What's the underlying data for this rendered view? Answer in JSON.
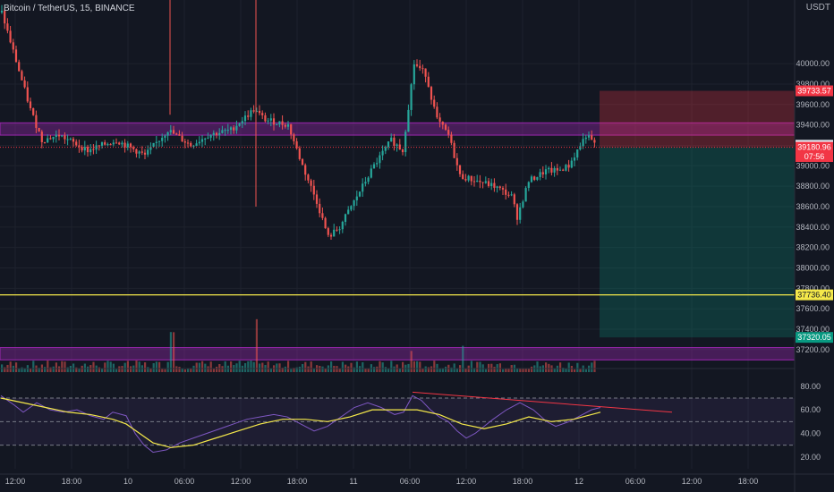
{
  "header": {
    "title": "Bitcoin / TetherUS, 15, BINANCE",
    "currency": "USDT"
  },
  "colors": {
    "background": "#131722",
    "up": "#26a69a",
    "down": "#ef5350",
    "zone": "#9c27b0",
    "yellow_line": "#f5e94a",
    "rsi_line": "#7e57c2",
    "rsi_ma": "#f5e94a",
    "trend_line": "#f23645"
  },
  "chart_data": [
    {
      "type": "candlestick",
      "title": "Bitcoin / TetherUS, 15, BINANCE",
      "ylim": [
        37050,
        40500
      ],
      "price_ticks": [
        "40000.00",
        "39800.00",
        "39600.00",
        "39400.00",
        "39200.00",
        "39000.00",
        "38800.00",
        "38600.00",
        "38400.00",
        "38200.00",
        "38000.00",
        "37800.00",
        "37600.00",
        "37400.00",
        "37200.00"
      ],
      "time_ticks": [
        "12:00",
        "18:00",
        "10",
        "06:00",
        "12:00",
        "18:00",
        "11",
        "06:00",
        "12:00",
        "18:00",
        "12",
        "06:00",
        "12:00",
        "18:00"
      ],
      "price_path": [
        [
          0,
          40500
        ],
        [
          10,
          39550
        ],
        [
          14,
          39250
        ],
        [
          20,
          39300
        ],
        [
          30,
          39150
        ],
        [
          40,
          39250
        ],
        [
          50,
          39100
        ],
        [
          58,
          39350
        ],
        [
          66,
          39200
        ],
        [
          72,
          39300
        ],
        [
          80,
          39350
        ],
        [
          88,
          39550
        ],
        [
          92,
          39450
        ],
        [
          100,
          39400
        ],
        [
          105,
          39000
        ],
        [
          110,
          38650
        ],
        [
          114,
          38300
        ],
        [
          118,
          38400
        ],
        [
          122,
          38600
        ],
        [
          130,
          39000
        ],
        [
          136,
          39250
        ],
        [
          140,
          39150
        ],
        [
          144,
          40000
        ],
        [
          148,
          39900
        ],
        [
          152,
          39450
        ],
        [
          156,
          39300
        ],
        [
          160,
          38900
        ],
        [
          166,
          38850
        ],
        [
          172,
          38800
        ],
        [
          178,
          38700
        ],
        [
          180,
          38500
        ],
        [
          184,
          38850
        ],
        [
          190,
          38950
        ],
        [
          194,
          38950
        ],
        [
          198,
          39000
        ],
        [
          204,
          39300
        ],
        [
          208,
          39180
        ]
      ],
      "zones": [
        {
          "from": 39420,
          "to": 39300
        },
        {
          "from": 37220,
          "to": 37100
        }
      ],
      "horizontal_line": 37736.4,
      "current_price_line": 39180.96,
      "position": {
        "entry": 39180.96,
        "stop": 39733.57,
        "target": 37320.05
      },
      "labels": [
        {
          "text": "39733.57",
          "price": 39733.57,
          "bg": "#f23645",
          "fg": "#ffffff"
        },
        {
          "text": "39201.07",
          "price": 39201.07,
          "bg": "#e0e3eb",
          "fg": "#131722"
        },
        {
          "text": "39180.96",
          "price": 39180.96,
          "bg": "#f23645",
          "fg": "#ffffff"
        },
        {
          "text": "07:56",
          "price": 39090,
          "bg": "#f23645",
          "fg": "#ffffff"
        },
        {
          "text": "37736.40",
          "price": 37736.4,
          "bg": "#f5e94a",
          "fg": "#131722"
        },
        {
          "text": "37320.05",
          "price": 37320.05,
          "bg": "#089981",
          "fg": "#ffffff"
        }
      ]
    },
    {
      "type": "line",
      "title": "",
      "ylim": [
        10,
        92
      ],
      "rsi_ticks": [
        "80.00",
        "60.00",
        "40.00",
        "20.00"
      ],
      "bands": [
        70,
        50,
        30
      ],
      "series": [
        {
          "points": [
            [
              0,
              72
            ],
            [
              6,
              64
            ],
            [
              10,
              58
            ],
            [
              16,
              66
            ],
            [
              22,
              60
            ],
            [
              28,
              58
            ],
            [
              34,
              60
            ],
            [
              40,
              55
            ],
            [
              46,
              52
            ],
            [
              50,
              58
            ],
            [
              56,
              55
            ],
            [
              60,
              40
            ],
            [
              64,
              30
            ],
            [
              68,
              24
            ],
            [
              74,
              26
            ],
            [
              80,
              32
            ],
            [
              86,
              36
            ],
            [
              92,
              40
            ],
            [
              98,
              44
            ],
            [
              104,
              48
            ],
            [
              110,
              52
            ],
            [
              116,
              54
            ],
            [
              122,
              56
            ],
            [
              128,
              54
            ],
            [
              134,
              48
            ],
            [
              140,
              42
            ],
            [
              146,
              46
            ],
            [
              152,
              54
            ],
            [
              158,
              62
            ],
            [
              164,
              66
            ],
            [
              170,
              62
            ],
            [
              176,
              56
            ],
            [
              180,
              58
            ],
            [
              184,
              72
            ],
            [
              188,
              68
            ],
            [
              192,
              60
            ],
            [
              196,
              54
            ],
            [
              200,
              50
            ],
            [
              204,
              42
            ],
            [
              208,
              36
            ],
            [
              212,
              40
            ],
            [
              216,
              46
            ],
            [
              220,
              52
            ],
            [
              226,
              60
            ],
            [
              232,
              66
            ],
            [
              238,
              60
            ],
            [
              244,
              50
            ],
            [
              248,
              46
            ],
            [
              254,
              50
            ],
            [
              260,
              56
            ],
            [
              264,
              60
            ],
            [
              268,
              62
            ]
          ]
        },
        {
          "points": [
            [
              0,
              70
            ],
            [
              10,
              66
            ],
            [
              20,
              62
            ],
            [
              30,
              58
            ],
            [
              40,
              56
            ],
            [
              50,
              52
            ],
            [
              56,
              48
            ],
            [
              62,
              40
            ],
            [
              68,
              32
            ],
            [
              76,
              28
            ],
            [
              86,
              30
            ],
            [
              96,
              36
            ],
            [
              106,
              42
            ],
            [
              116,
              48
            ],
            [
              126,
              52
            ],
            [
              136,
              52
            ],
            [
              146,
              50
            ],
            [
              156,
              54
            ],
            [
              166,
              60
            ],
            [
              176,
              60
            ],
            [
              186,
              60
            ],
            [
              196,
              56
            ],
            [
              206,
              48
            ],
            [
              216,
              44
            ],
            [
              226,
              48
            ],
            [
              236,
              54
            ],
            [
              246,
              50
            ],
            [
              256,
              52
            ],
            [
              264,
              56
            ],
            [
              268,
              58
            ]
          ]
        }
      ],
      "trend_line": [
        [
          184,
          75
        ],
        [
          300,
          58
        ]
      ]
    }
  ]
}
